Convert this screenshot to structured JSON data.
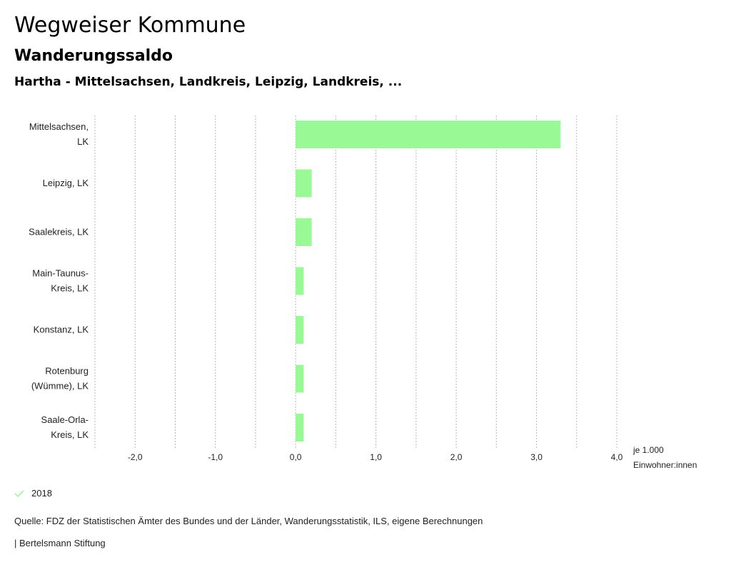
{
  "header": {
    "title": "Wegweiser Kommune",
    "subtitle": "Wanderungssaldo",
    "region": "Hartha - Mittelsachsen, Landkreis, Leipzig, Landkreis, ..."
  },
  "chart_data": {
    "type": "bar",
    "orientation": "horizontal",
    "categories": [
      [
        "Mittelsachsen,",
        "LK"
      ],
      [
        "Leipzig, LK"
      ],
      [
        "Saalekreis, LK"
      ],
      [
        "Main-Taunus-",
        "Kreis, LK"
      ],
      [
        "Konstanz, LK"
      ],
      [
        "Rotenburg",
        "(Wümme), LK"
      ],
      [
        "Saale-Orla-",
        "Kreis, LK"
      ]
    ],
    "series": [
      {
        "name": "2018",
        "values": [
          3.3,
          0.2,
          0.2,
          0.1,
          0.1,
          0.1,
          0.1
        ],
        "color": "#99f995"
      }
    ],
    "xlim": [
      -2.5,
      4.0
    ],
    "x_ticks": [
      -2.0,
      -1.0,
      0.0,
      1.0,
      2.0,
      3.0,
      4.0
    ],
    "x_tick_labels": [
      "-2,0",
      "-1,0",
      "0,0",
      "1,0",
      "2,0",
      "3,0",
      "4,0"
    ],
    "gridlines": [
      -2.5,
      -2.0,
      -1.5,
      -1.0,
      -0.5,
      0.0,
      0.5,
      1.0,
      1.5,
      2.0,
      2.5,
      3.0,
      3.5,
      4.0
    ],
    "grid": true,
    "xlabel": [
      "je 1.000",
      "Einwohner:innen"
    ],
    "legend_position": "bottom-left"
  },
  "legend": {
    "label": "2018",
    "color": "#99f995"
  },
  "footer": {
    "source": "Quelle: FDZ der Statistischen Ämter des Bundes und der Länder, Wanderungsstatistik, ILS, eigene Berechnungen",
    "credit": "| Bertelsmann Stiftung"
  }
}
